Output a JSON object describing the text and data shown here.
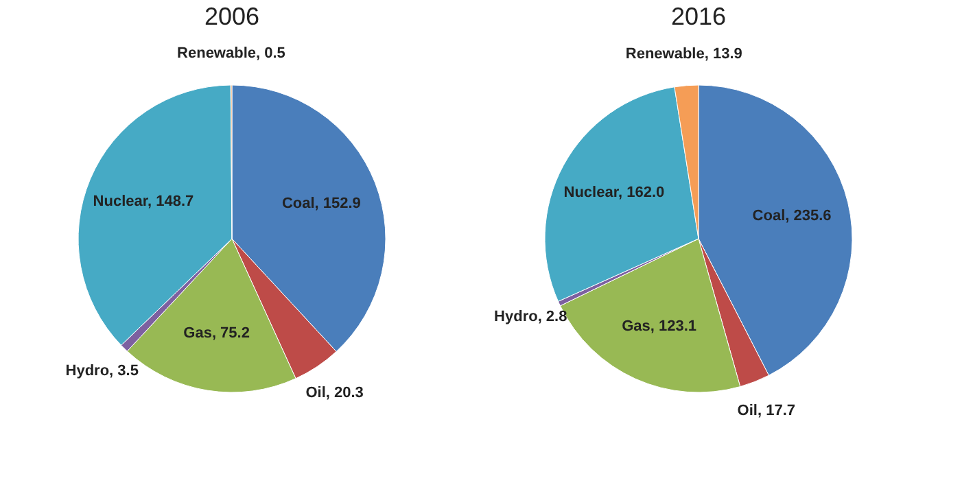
{
  "chart_data": [
    {
      "type": "pie",
      "title": "2006",
      "categories": [
        "Coal",
        "Oil",
        "Gas",
        "Hydro",
        "Nuclear",
        "Renewable"
      ],
      "values": [
        152.9,
        20.3,
        75.2,
        3.5,
        148.7,
        0.5
      ],
      "value_labels": [
        "152.9",
        "20.3",
        "75.2",
        "3.5",
        "148.7",
        "0.5"
      ],
      "colors": [
        "#4a7ebb",
        "#be4b48",
        "#98b954",
        "#7d60a0",
        "#46aac5",
        "#f59d56"
      ],
      "legend": false
    },
    {
      "type": "pie",
      "title": "2016",
      "categories": [
        "Coal",
        "Oil",
        "Gas",
        "Hydro",
        "Nuclear",
        "Renewable"
      ],
      "values": [
        235.6,
        17.7,
        123.1,
        2.8,
        162.0,
        13.9
      ],
      "value_labels": [
        "235.6",
        "17.7",
        "123.1",
        "2.8",
        "162.0",
        "13.9"
      ],
      "colors": [
        "#4a7ebb",
        "#be4b48",
        "#98b954",
        "#7d60a0",
        "#46aac5",
        "#f59d56"
      ],
      "legend": false
    }
  ]
}
